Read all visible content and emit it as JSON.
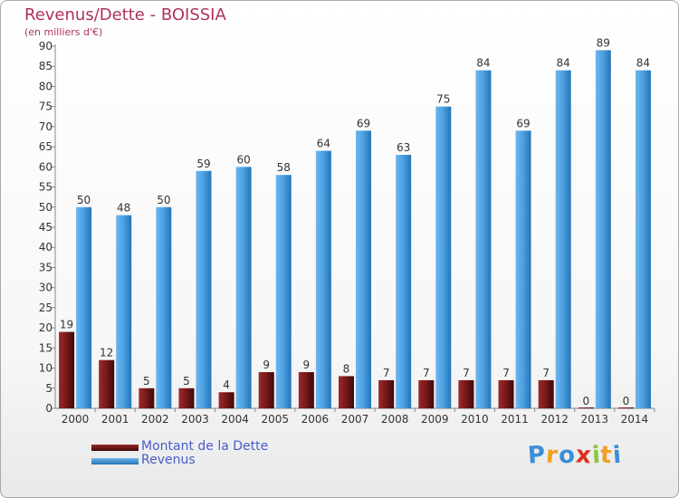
{
  "chart_data": {
    "type": "bar",
    "title": "Revenus/Dette - BOISSIA",
    "subtitle": "(en milliers d'€)",
    "categories": [
      "2000",
      "2001",
      "2002",
      "2003",
      "2004",
      "2005",
      "2006",
      "2007",
      "2008",
      "2009",
      "2010",
      "2011",
      "2012",
      "2013",
      "2014"
    ],
    "series": [
      {
        "name": "Montant de la Dette",
        "color": "#7a1a1a",
        "values": [
          19,
          12,
          5,
          5,
          4,
          9,
          9,
          8,
          7,
          7,
          7,
          7,
          7,
          0,
          0
        ]
      },
      {
        "name": "Revenus",
        "color": "#4a9fe0",
        "values": [
          50,
          48,
          50,
          59,
          60,
          58,
          64,
          69,
          63,
          75,
          84,
          69,
          84,
          89,
          84
        ]
      }
    ],
    "ylim": [
      0,
      90
    ],
    "yticks": [
      0,
      5,
      10,
      15,
      20,
      25,
      30,
      35,
      40,
      45,
      50,
      55,
      60,
      65,
      70,
      75,
      80,
      85,
      90
    ],
    "grid": false,
    "legend_position": "bottom-left"
  },
  "logo": {
    "text": "Proxiti",
    "letters": [
      "P",
      "r",
      "o",
      "x",
      "i",
      "t",
      "i"
    ],
    "colors": [
      "#3a8fd6",
      "#f0a020",
      "#3a8fd6",
      "#e03020",
      "#8cc63f",
      "#f0a020",
      "#3a8fd6"
    ]
  }
}
